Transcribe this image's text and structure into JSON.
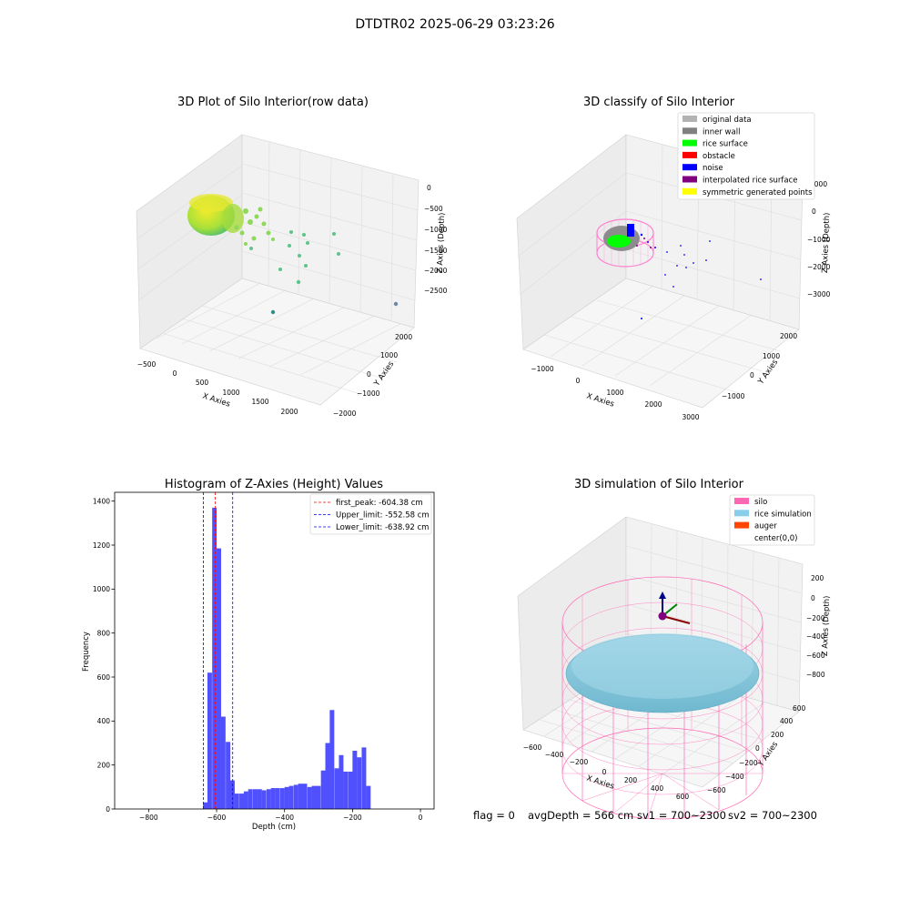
{
  "figure": {
    "suptitle": "DTDTR02 2025-06-29 03:23:26",
    "status": {
      "flag": "flag = 0",
      "avg_depth": "avgDepth = 566 cm",
      "sv1": "sv1 = 700~2300",
      "sv2": "sv2 = 700~2300"
    }
  },
  "plot1": {
    "title": "3D Plot of Silo Interior(row data)",
    "xlabel": "X Axies",
    "ylabel": "Y Axies",
    "zlabel": "Z Axies (Depth)",
    "xticks": [
      "−500",
      "0",
      "500",
      "1000",
      "1500",
      "2000"
    ],
    "yticks": [
      "−2000",
      "−1000",
      "0",
      "1000",
      "2000"
    ],
    "zticks": [
      "0",
      "−500",
      "−1000",
      "−1500",
      "−2000",
      "−2500"
    ]
  },
  "plot2": {
    "title": "3D classify of Silo Interior",
    "xlabel": "X Axies",
    "ylabel": "Y Axies",
    "zlabel": "Z Axies (Depth)",
    "xticks": [
      "−1000",
      "0",
      "1000",
      "2000",
      "3000"
    ],
    "yticks": [
      "−1000",
      "0",
      "1000",
      "2000"
    ],
    "zticks": [
      "1000",
      "0",
      "−1000",
      "−2000",
      "−3000"
    ],
    "legend": [
      {
        "label": "original data",
        "color": "#b3b3b3"
      },
      {
        "label": "inner wall",
        "color": "#808080"
      },
      {
        "label": "rice surface",
        "color": "#00ff00"
      },
      {
        "label": "obstacle",
        "color": "#ff0000"
      },
      {
        "label": "noise",
        "color": "#0000ff"
      },
      {
        "label": "interpolated rice surface",
        "color": "#800080"
      },
      {
        "label": "symmetric generated points",
        "color": "#ffff00"
      }
    ]
  },
  "plot4": {
    "title": "3D simulation of Silo Interior",
    "xlabel": "X Axies",
    "ylabel": "Y Axies",
    "zlabel": "Z Axies (Depth)",
    "xticks": [
      "−600",
      "−400",
      "−200",
      "0",
      "200",
      "400",
      "600"
    ],
    "yticks": [
      "−600",
      "−400",
      "−200",
      "0",
      "200",
      "400",
      "600"
    ],
    "zticks": [
      "200",
      "0",
      "−200",
      "−400",
      "−600",
      "−800"
    ],
    "legend": [
      {
        "label": "silo",
        "color": "#ff69b4"
      },
      {
        "label": "rice simulation",
        "color": "#87ceeb"
      },
      {
        "label": "auger",
        "color": "#ff4500"
      },
      {
        "label": "center(0,0)",
        "color": ""
      }
    ]
  },
  "chart_data": {
    "type": "bar",
    "title": "Histogram of Z-Axies (Height) Values",
    "xlabel": "Depth (cm)",
    "ylabel": "Frequency",
    "xlim": [
      -900,
      40
    ],
    "ylim": [
      0,
      1440
    ],
    "xticks": [
      -800,
      -600,
      -400,
      -200,
      0
    ],
    "yticks": [
      0,
      200,
      400,
      600,
      800,
      1000,
      1200,
      1400
    ],
    "color": "#5050ff",
    "bin_width": 13.3,
    "bins": [
      {
        "x": -640,
        "value": 30
      },
      {
        "x": -627,
        "value": 620
      },
      {
        "x": -613,
        "value": 1370
      },
      {
        "x": -600,
        "value": 1185
      },
      {
        "x": -587,
        "value": 420
      },
      {
        "x": -573,
        "value": 305
      },
      {
        "x": -560,
        "value": 130
      },
      {
        "x": -547,
        "value": 70
      },
      {
        "x": -533,
        "value": 70
      },
      {
        "x": -520,
        "value": 80
      },
      {
        "x": -507,
        "value": 90
      },
      {
        "x": -493,
        "value": 90
      },
      {
        "x": -480,
        "value": 90
      },
      {
        "x": -467,
        "value": 85
      },
      {
        "x": -453,
        "value": 90
      },
      {
        "x": -440,
        "value": 95
      },
      {
        "x": -427,
        "value": 95
      },
      {
        "x": -413,
        "value": 95
      },
      {
        "x": -400,
        "value": 100
      },
      {
        "x": -387,
        "value": 105
      },
      {
        "x": -373,
        "value": 110
      },
      {
        "x": -360,
        "value": 115
      },
      {
        "x": -347,
        "value": 115
      },
      {
        "x": -333,
        "value": 100
      },
      {
        "x": -320,
        "value": 105
      },
      {
        "x": -307,
        "value": 105
      },
      {
        "x": -293,
        "value": 175
      },
      {
        "x": -280,
        "value": 300
      },
      {
        "x": -267,
        "value": 450
      },
      {
        "x": -253,
        "value": 185
      },
      {
        "x": -240,
        "value": 245
      },
      {
        "x": -227,
        "value": 170
      },
      {
        "x": -213,
        "value": 170
      },
      {
        "x": -200,
        "value": 265
      },
      {
        "x": -187,
        "value": 235
      },
      {
        "x": -173,
        "value": 280
      },
      {
        "x": -160,
        "value": 105
      }
    ],
    "vlines": [
      {
        "label": "first_peak: -604.38 cm",
        "x": -604.38,
        "color": "#ff0000"
      },
      {
        "label": "Upper_limit: -552.58 cm",
        "x": -552.58,
        "color": "#0000ff"
      },
      {
        "label": "Lower_limit: -638.92 cm",
        "x": -638.92,
        "color": "#0000ff"
      }
    ]
  }
}
